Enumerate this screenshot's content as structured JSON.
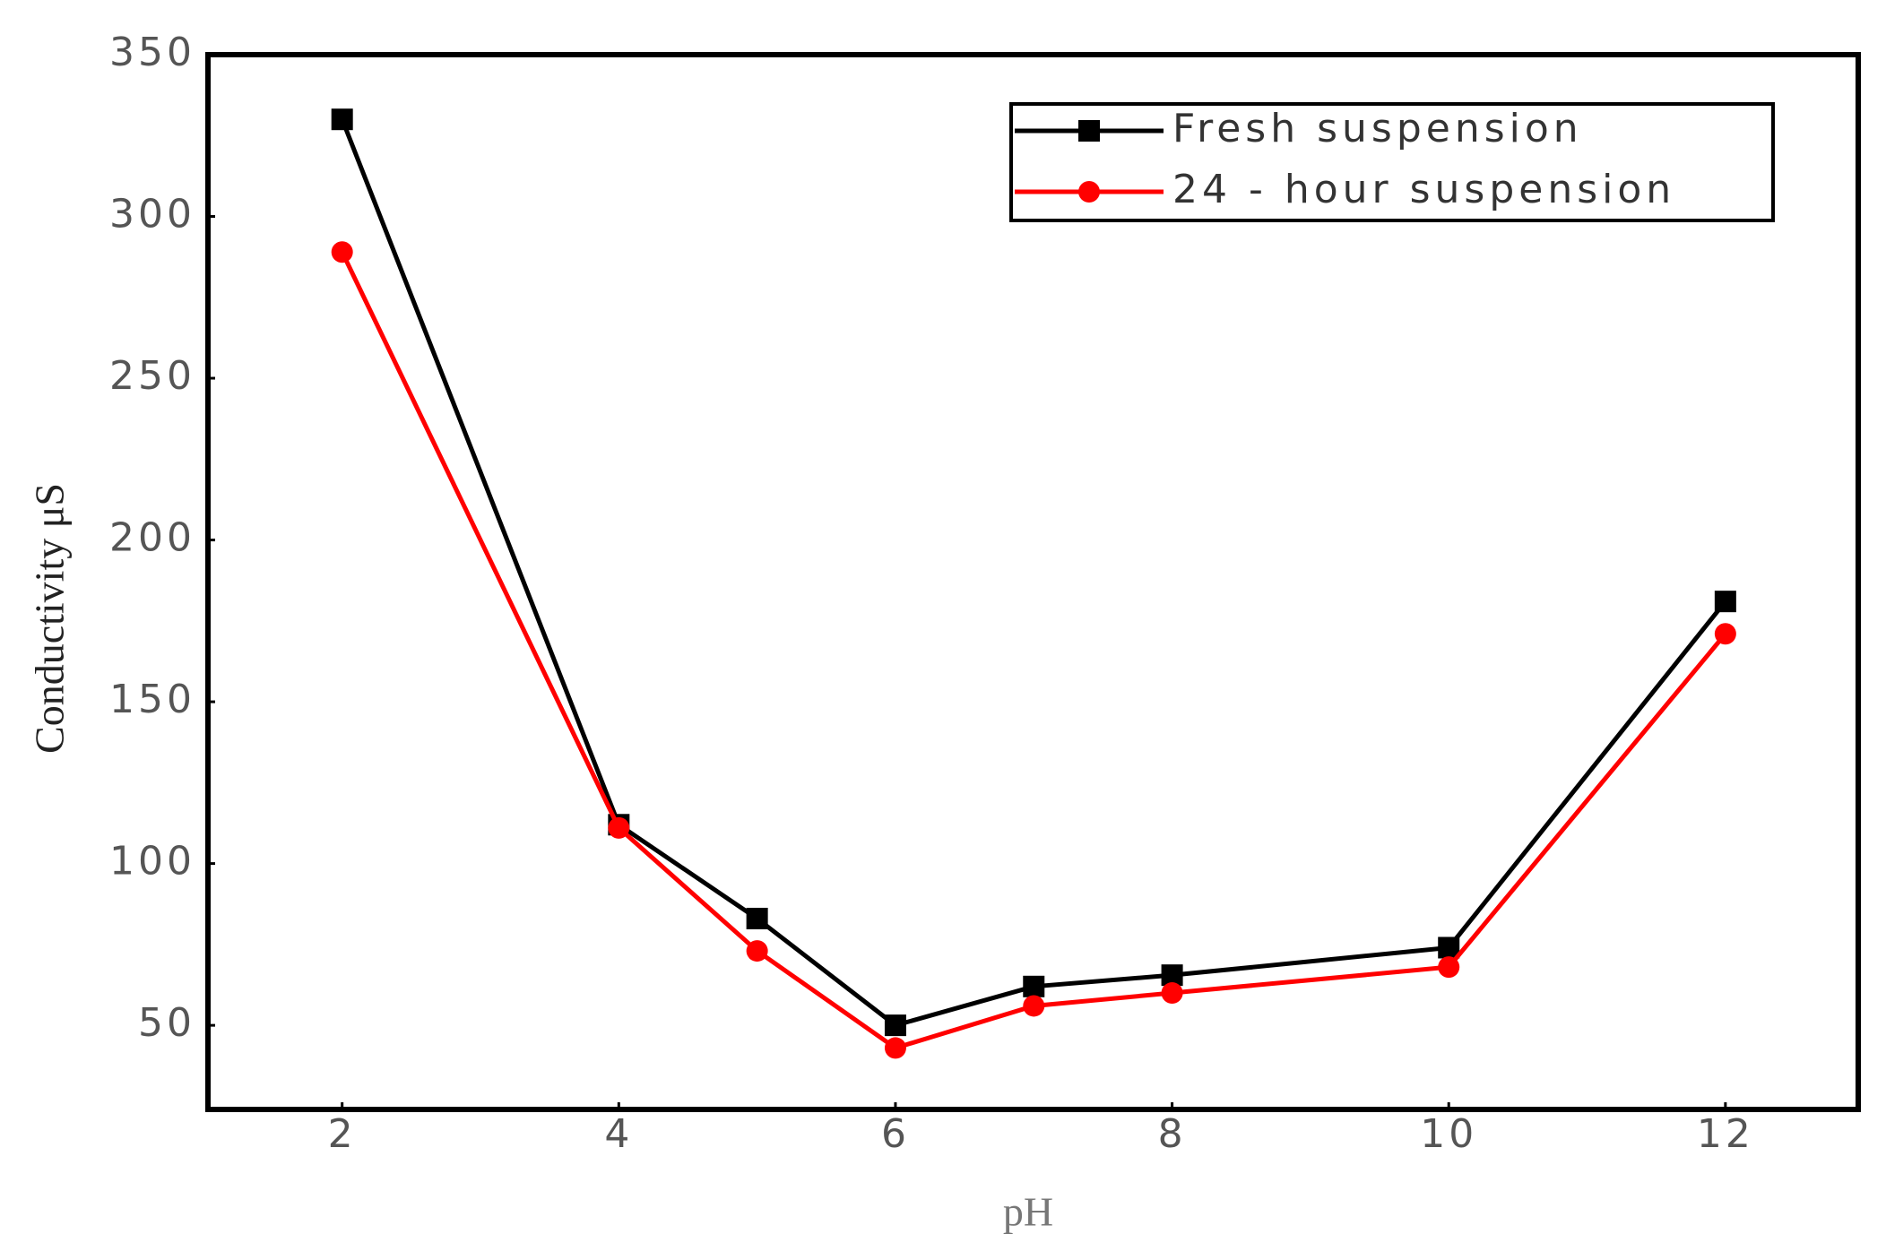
{
  "chart_data": {
    "type": "line",
    "x_label": "pH",
    "y_label": "Conductivity μS",
    "x": [
      2,
      4,
      5,
      6,
      7,
      8,
      10,
      12
    ],
    "series": [
      {
        "name": "Fresh suspension",
        "color": "#000000",
        "marker": "square",
        "values": [
          330,
          112,
          83,
          50,
          62,
          65.5,
          74,
          181
        ]
      },
      {
        "name": "24 - hour suspension",
        "color": "#ff0000",
        "marker": "circle",
        "values": [
          289,
          111,
          73,
          43,
          56,
          60,
          68,
          171
        ]
      }
    ],
    "xlim": [
      1.03,
      12.96
    ],
    "ylim": [
      24,
      350
    ],
    "xticks": [
      2,
      4,
      6,
      8,
      10,
      12
    ],
    "yticks": [
      50,
      100,
      150,
      200,
      250,
      300,
      350
    ],
    "legend": "upper-right"
  }
}
